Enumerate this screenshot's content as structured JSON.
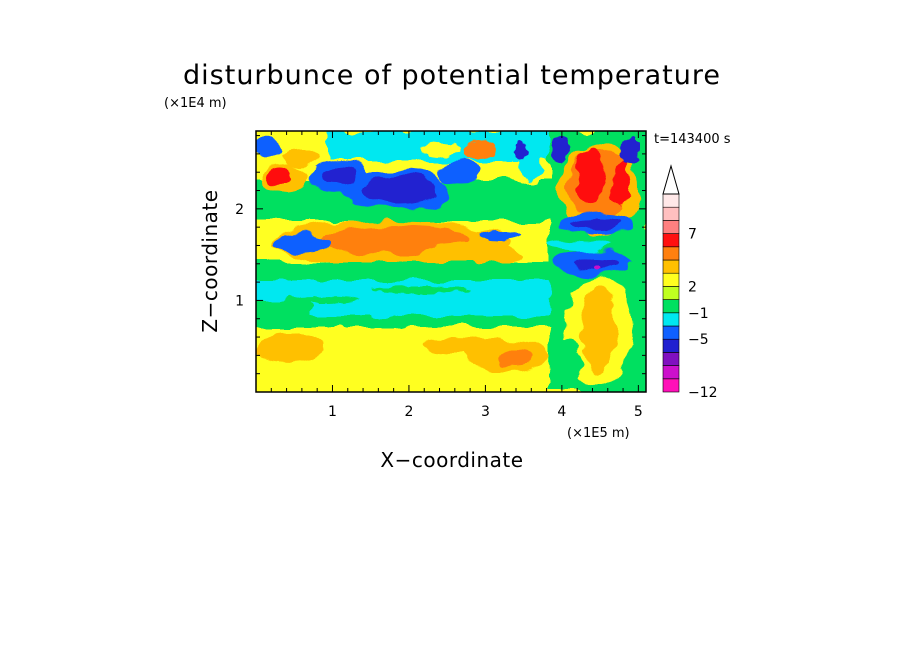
{
  "chart_data": {
    "type": "heatmap",
    "title": "disturbunce of potential temperature",
    "xlabel": "X−coordinate",
    "ylabel": "Z−coordinate",
    "x_multiplier": "(×1E5 m)",
    "y_multiplier": "(×1E4 m)",
    "time_label": "t=143400 s",
    "xlim": [
      0,
      5.1
    ],
    "ylim": [
      0,
      2.85
    ],
    "x_ticks": [
      1,
      2,
      3,
      4,
      5
    ],
    "x_tick_labels": [
      "1",
      "2",
      "3",
      "4",
      "5"
    ],
    "y_ticks": [
      1,
      2
    ],
    "y_tick_labels": [
      "1",
      "2"
    ],
    "colorbar": {
      "levels": [
        "−12",
        "−5",
        "−1",
        "2",
        "7"
      ],
      "colors": [
        "#ff10b8",
        "#cc10cc",
        "#8010c0",
        "#2020d0",
        "#1060ff",
        "#00e8f0",
        "#00e060",
        "#c0ff20",
        "#ffff20",
        "#ffc000",
        "#ff8010",
        "#ff1010",
        "#ff8080",
        "#ffc0c0",
        "#ffe8e8"
      ],
      "extend": "max"
    },
    "features": [
      {
        "x": 1.9,
        "z": 2.3,
        "value": -6
      },
      {
        "x": 0.6,
        "z": 2.35,
        "value": -5
      },
      {
        "x": 0.25,
        "z": 2.5,
        "value": 8
      },
      {
        "x": 1.8,
        "z": 1.65,
        "value": 3
      },
      {
        "x": 2.7,
        "z": 1.45,
        "value": 3
      },
      {
        "x": 2.0,
        "z": 1.05,
        "value": -2
      },
      {
        "x": 1.5,
        "z": 0.5,
        "value": 1
      },
      {
        "x": 4.4,
        "z": 1.4,
        "value": -7
      },
      {
        "x": 4.35,
        "z": 1.9,
        "value": -6
      },
      {
        "x": 4.55,
        "z": 2.4,
        "value": 6
      },
      {
        "x": 3.5,
        "z": 0.4,
        "value": 3
      }
    ]
  }
}
